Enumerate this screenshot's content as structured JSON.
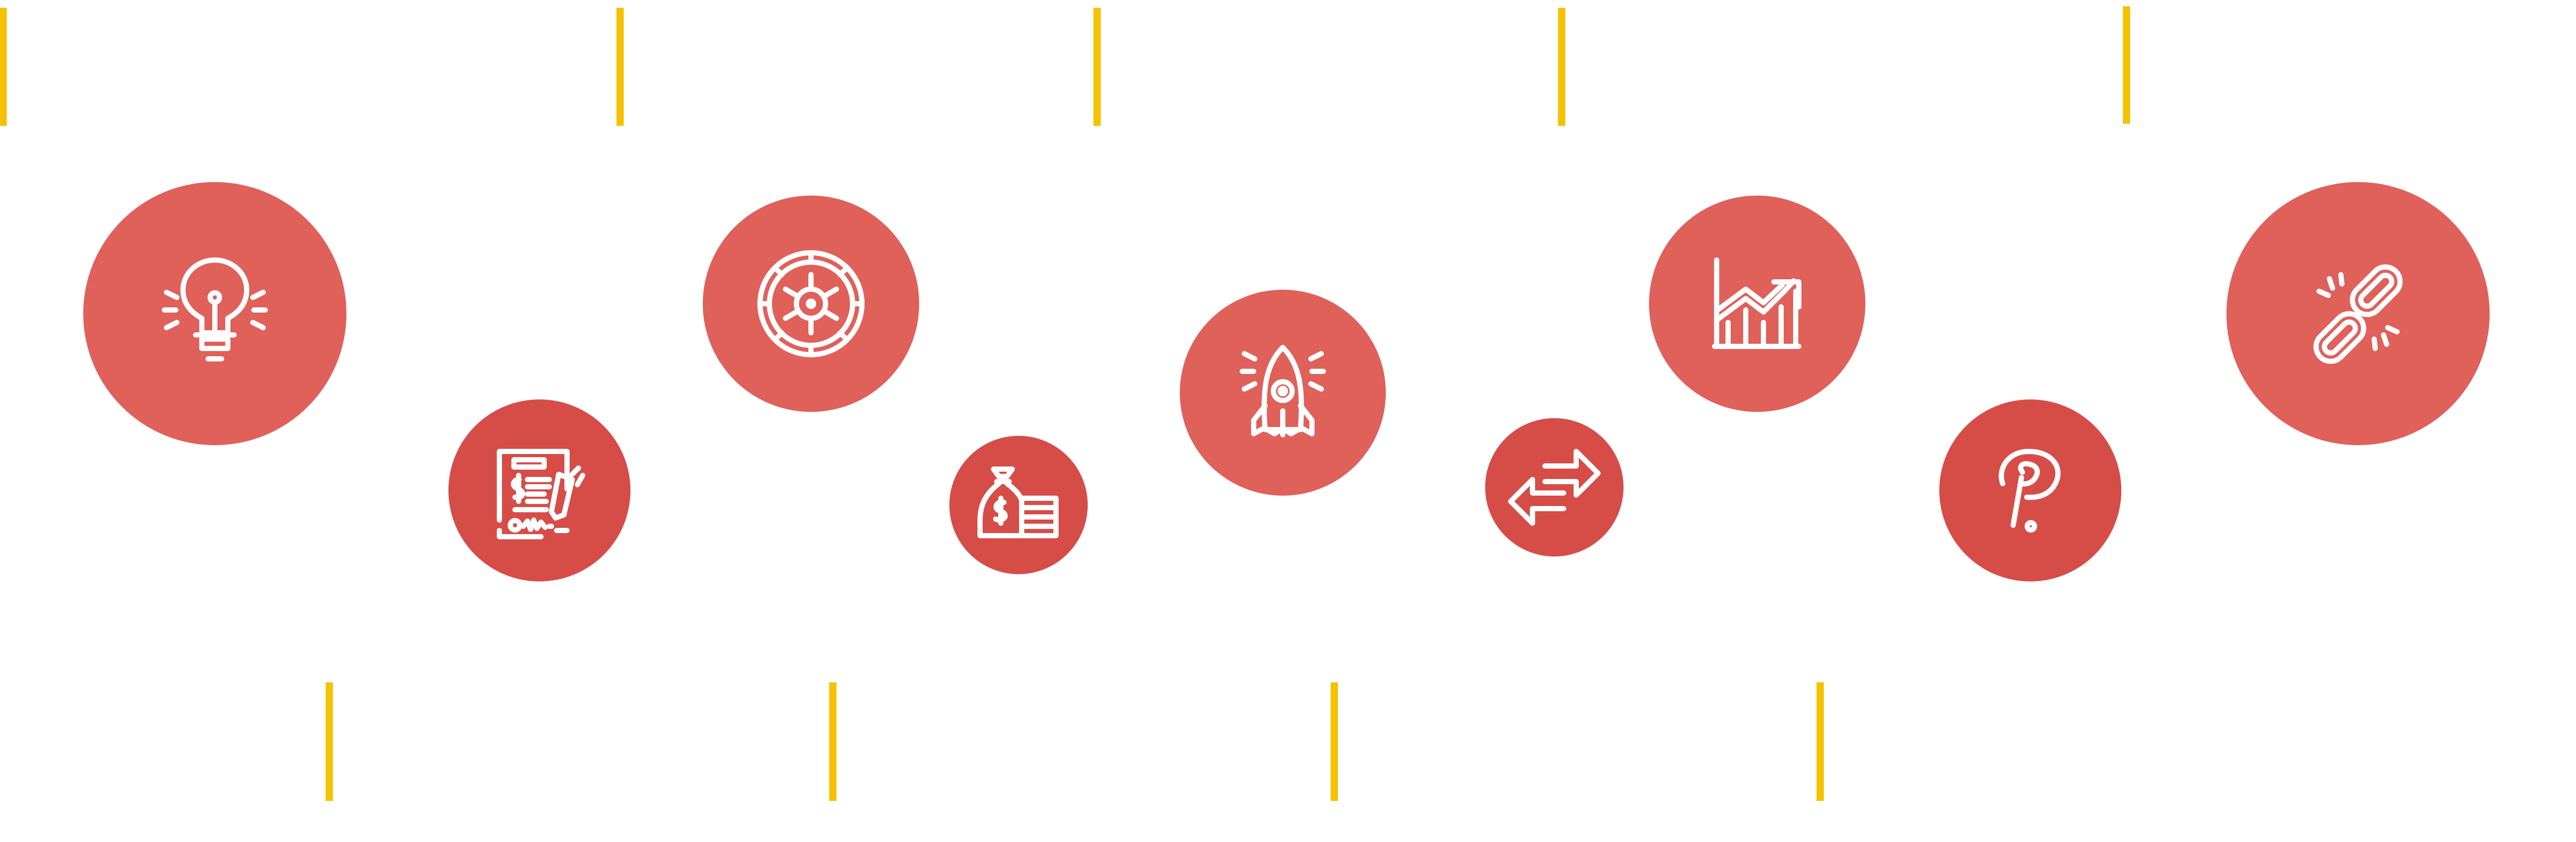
{
  "colors": {
    "background": "#ffffff",
    "circle_light": "#e0605a",
    "circle_dark": "#d64d48",
    "icon_stroke": "#ffffff",
    "connector": "#f6c200"
  },
  "connectors_top_count": 6,
  "connectors_bottom_count": 4,
  "nodes": [
    {
      "icon": "lightbulb-icon",
      "tone": "light"
    },
    {
      "icon": "contract-icon",
      "tone": "dark"
    },
    {
      "icon": "roulette-wheel-icon",
      "tone": "light"
    },
    {
      "icon": "money-bag-icon",
      "tone": "dark"
    },
    {
      "icon": "rocket-icon",
      "tone": "light"
    },
    {
      "icon": "exchange-arrows-icon",
      "tone": "dark"
    },
    {
      "icon": "growth-chart-icon",
      "tone": "light"
    },
    {
      "icon": "paypal-icon",
      "tone": "dark"
    },
    {
      "icon": "broken-link-icon",
      "tone": "light"
    }
  ]
}
